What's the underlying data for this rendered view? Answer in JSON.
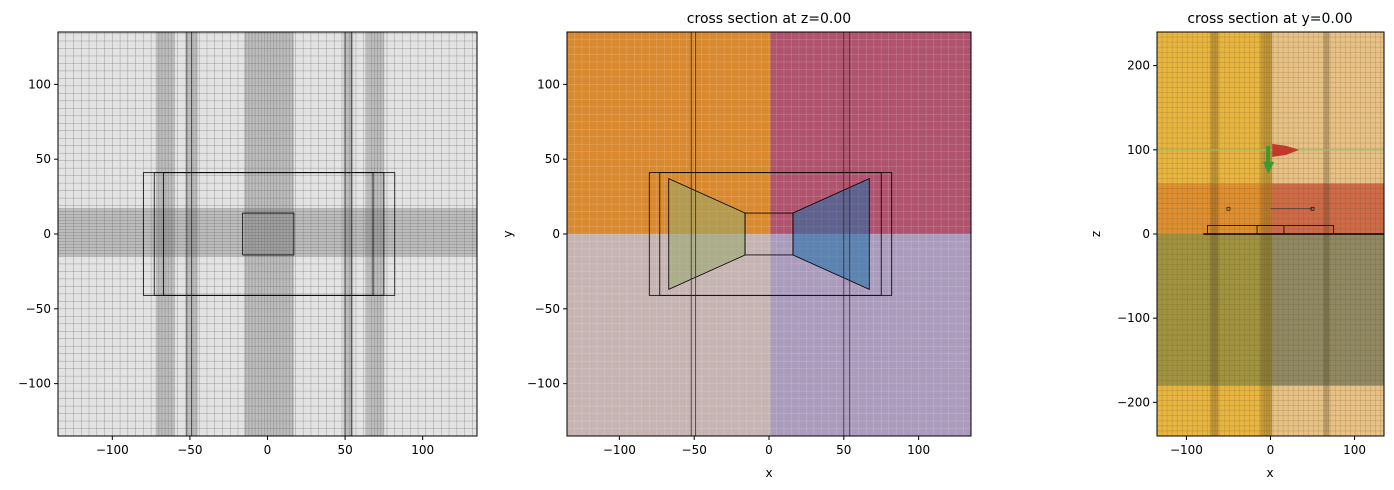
{
  "chart_data": [
    {
      "type": "other",
      "title": "",
      "xlabel": "",
      "ylabel": "",
      "xlim": [
        -135,
        135
      ],
      "ylim": [
        -135,
        135
      ],
      "xticks": [
        -100,
        -50,
        0,
        50,
        100
      ],
      "yticks": [
        -100,
        -50,
        0,
        50,
        100
      ],
      "xticklabels": [
        "−100",
        "−50",
        "0",
        "50",
        "100"
      ],
      "yticklabels": [
        "−100",
        "−50",
        "0",
        "50",
        "100"
      ],
      "background_color": "#e3e3e3",
      "dense_bands_x": [
        [
          -72,
          -60
        ],
        [
          -52,
          -45
        ],
        [
          -15,
          17
        ],
        [
          49,
          55
        ],
        [
          63,
          75
        ]
      ],
      "dense_bands_y": [
        [
          -15,
          17
        ]
      ],
      "rectangles": [
        {
          "x": [
            -80,
            82
          ],
          "y": [
            -41,
            41
          ]
        },
        {
          "x": [
            -73,
            75
          ],
          "y": [
            -41,
            41
          ]
        },
        {
          "x": [
            -67,
            68
          ],
          "y": [
            -41,
            41
          ]
        },
        {
          "x": [
            -16,
            17
          ],
          "y": [
            -14,
            14
          ]
        }
      ]
    },
    {
      "type": "other",
      "title": "cross section at z=0.00",
      "xlabel": "x",
      "ylabel": "y",
      "xlim": [
        -135,
        135
      ],
      "ylim": [
        -135,
        135
      ],
      "xticks": [
        -100,
        -50,
        0,
        50,
        100
      ],
      "yticks": [
        -100,
        -50,
        0,
        50,
        100
      ],
      "xticklabels": [
        "−100",
        "−50",
        "0",
        "50",
        "100"
      ],
      "yticklabels": [
        "−100",
        "−50",
        "0",
        "50",
        "100"
      ],
      "regions": [
        {
          "x": [
            -135,
            1
          ],
          "y": [
            0,
            135
          ],
          "color": "#d9892f"
        },
        {
          "x": [
            1,
            135
          ],
          "y": [
            0,
            135
          ],
          "color": "#b0536e"
        },
        {
          "x": [
            -135,
            1
          ],
          "y": [
            -135,
            0
          ],
          "color": "#c5b4b2"
        },
        {
          "x": [
            1,
            135
          ],
          "y": [
            -135,
            0
          ],
          "color": "#ab9bbd"
        }
      ],
      "polygons": [
        {
          "points": [
            [
              -67,
              37
            ],
            [
              -67,
              -37
            ],
            [
              -16,
              -14
            ],
            [
              -16,
              14
            ]
          ],
          "color": "#97a86c"
        },
        {
          "points": [
            [
              16,
              14
            ],
            [
              67,
              37
            ],
            [
              67,
              -37
            ],
            [
              16,
              -14
            ]
          ],
          "color": "#1f6fa8"
        }
      ],
      "rectangles": [
        {
          "x": [
            -80,
            82
          ],
          "y": [
            -41,
            41
          ]
        },
        {
          "x": [
            -73,
            75
          ],
          "y": [
            -41,
            41
          ]
        },
        {
          "x": [
            -16,
            16
          ],
          "y": [
            -14,
            14
          ]
        }
      ]
    },
    {
      "type": "other",
      "title": "cross section at y=0.00",
      "xlabel": "x",
      "ylabel": "z",
      "xlim": [
        -135,
        135
      ],
      "ylim": [
        -240,
        240
      ],
      "xticks": [
        -100,
        0,
        100
      ],
      "yticks": [
        -200,
        -100,
        0,
        100,
        200
      ],
      "xticklabels": [
        "−100",
        "0",
        "100"
      ],
      "yticklabels": [
        "−200",
        "−100",
        "0",
        "100",
        "200"
      ],
      "regions": [
        {
          "x": [
            -135,
            2
          ],
          "y": [
            -240,
            240
          ],
          "color": "#e8b540"
        },
        {
          "x": [
            2,
            135
          ],
          "y": [
            -240,
            240
          ],
          "color": "#e7c186"
        },
        {
          "x": [
            -135,
            2
          ],
          "y": [
            -180,
            0
          ],
          "color": "#a0923f"
        },
        {
          "x": [
            2,
            135
          ],
          "y": [
            -180,
            0
          ],
          "color": "#8f8862"
        },
        {
          "x": [
            -135,
            2
          ],
          "y": [
            0,
            60
          ],
          "color": "#df8f30"
        },
        {
          "x": [
            2,
            135
          ],
          "y": [
            0,
            60
          ],
          "color": "#cf6a48"
        }
      ],
      "source_arrow_color": "#c0392b",
      "monitor_arrow_color": "#3a9a2e"
    }
  ]
}
